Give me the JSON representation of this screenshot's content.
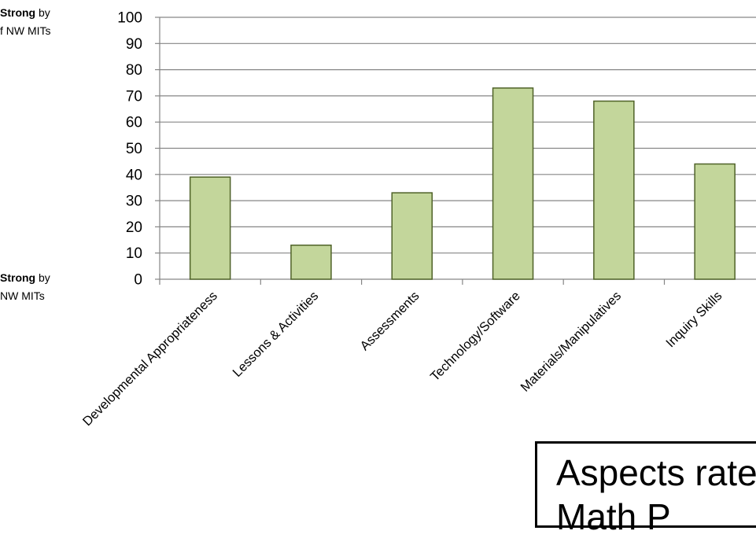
{
  "side_notes": {
    "top_bold": "Strong",
    "top_rest": " by",
    "top_line2": "f NW MITs",
    "bottom_bold": "Strong",
    "bottom_rest": " by",
    "bottom_line2": "NW MITs"
  },
  "caption": {
    "line1": "Aspects rate",
    "line2": "Math P"
  },
  "colors": {
    "bar_fill": "#c3d69b",
    "bar_stroke": "#4f6228",
    "grid": "#868686",
    "axis": "#868686",
    "text": "#000000"
  },
  "chart_data": {
    "type": "bar",
    "categories": [
      "Developmental Appropriateness",
      "Lessons & Activities",
      "Assessments",
      "Technology/Software",
      "Materials/Manipulatives",
      "Inquiry Skills"
    ],
    "values": [
      39,
      13,
      33,
      73,
      68,
      44
    ],
    "ylim": [
      0,
      100
    ],
    "yticks": [
      0,
      10,
      20,
      30,
      40,
      50,
      60,
      70,
      80,
      90,
      100
    ],
    "grid": true,
    "title": "",
    "xlabel": "",
    "ylabel": ""
  }
}
